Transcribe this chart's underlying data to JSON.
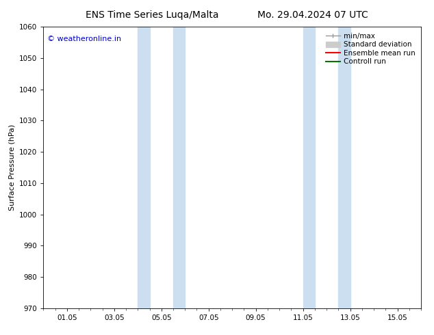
{
  "title_left": "ENS Time Series Luqa/Malta",
  "title_right": "Mo. 29.04.2024 07 UTC",
  "ylabel": "Surface Pressure (hPa)",
  "ylim": [
    970,
    1060
  ],
  "yticks": [
    970,
    980,
    990,
    1000,
    1010,
    1020,
    1030,
    1040,
    1050,
    1060
  ],
  "xlim": [
    0.0,
    16.0
  ],
  "xtick_positions": [
    1,
    3,
    5,
    7,
    9,
    11,
    13,
    15
  ],
  "xtick_labels": [
    "01.05",
    "03.05",
    "05.05",
    "07.05",
    "09.05",
    "11.05",
    "13.05",
    "15.05"
  ],
  "shaded_bands": [
    {
      "x_start": 4.0,
      "x_end": 4.5
    },
    {
      "x_start": 5.5,
      "x_end": 6.0
    },
    {
      "x_start": 11.0,
      "x_end": 11.5
    },
    {
      "x_start": 12.5,
      "x_end": 13.0
    }
  ],
  "shaded_color": "#ccdff0",
  "copyright_text": "© weatheronline.in",
  "copyright_color": "#0000cc",
  "legend_entries": [
    {
      "label": "min/max",
      "color": "#999999",
      "lw": 1.0
    },
    {
      "label": "Standard deviation",
      "color": "#cccccc",
      "lw": 6
    },
    {
      "label": "Ensemble mean run",
      "color": "#ff0000",
      "lw": 1.5
    },
    {
      "label": "Controll run",
      "color": "#007700",
      "lw": 1.5
    }
  ],
  "bg_color": "#ffffff",
  "grid_color": "#dddddd",
  "spine_color": "#000000",
  "title_fontsize": 10,
  "label_fontsize": 8,
  "tick_fontsize": 7.5,
  "legend_fontsize": 7.5
}
